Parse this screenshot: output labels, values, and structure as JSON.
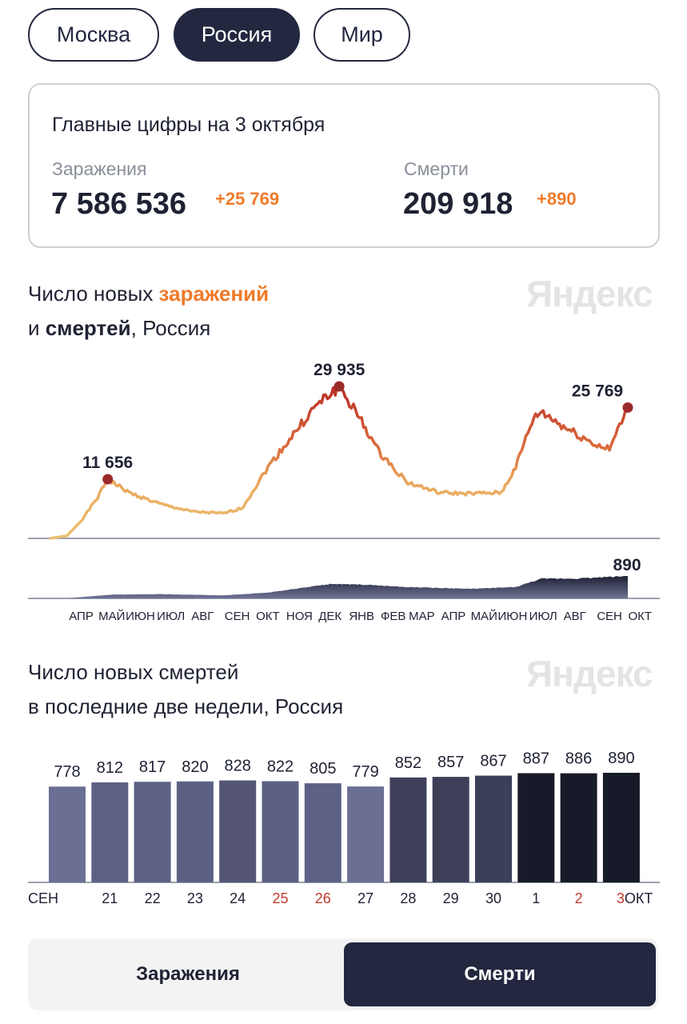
{
  "regions": [
    {
      "label": "Москва",
      "active": false
    },
    {
      "label": "Россия",
      "active": true
    },
    {
      "label": "Мир",
      "active": false
    }
  ],
  "summary": {
    "title": "Главные цифры на 3 октября",
    "infections": {
      "label": "Заражения",
      "value": "7 586 536",
      "delta": "+25 769"
    },
    "deaths": {
      "label": "Смерти",
      "value": "209 918",
      "delta": "+890"
    }
  },
  "watermark": "Яндекс",
  "colors": {
    "accent": "#f07a2a",
    "dark": "#232840",
    "weekend": "#c0392b"
  },
  "chart1": {
    "title_pre": "Число новых ",
    "title_hl1": "заражений",
    "title_mid": "и ",
    "title_hl2": "смертей",
    "title_post": ", Россия"
  },
  "chart_data": [
    {
      "type": "line",
      "series": [
        {
          "values": [
            [
              "2020-03-15",
              0
            ],
            [
              "2020-04-01",
              500
            ],
            [
              "2020-04-15",
              3500
            ],
            [
              "2020-05-01",
              8000
            ],
            [
              "2020-05-11",
              11656
            ],
            [
              "2020-06-01",
              9000
            ],
            [
              "2020-07-01",
              6800
            ],
            [
              "2020-08-01",
              5300
            ],
            [
              "2020-09-01",
              4900
            ],
            [
              "2020-09-20",
              6000
            ],
            [
              "2020-10-15",
              14000
            ],
            [
              "2020-11-15",
              22000
            ],
            [
              "2020-12-01",
              26000
            ],
            [
              "2020-12-24",
              29935
            ],
            [
              "2021-01-15",
              23000
            ],
            [
              "2021-02-01",
              17000
            ],
            [
              "2021-03-01",
              11000
            ],
            [
              "2021-04-01",
              9000
            ],
            [
              "2021-05-01",
              8800
            ],
            [
              "2021-06-01",
              9000
            ],
            [
              "2021-06-15",
              14000
            ],
            [
              "2021-07-01",
              23000
            ],
            [
              "2021-07-10",
              25000
            ],
            [
              "2021-08-01",
              22000
            ],
            [
              "2021-09-01",
              18500
            ],
            [
              "2021-09-15",
              17500
            ],
            [
              "2021-10-03",
              25769
            ]
          ]
        }
      ],
      "annotations": [
        {
          "date": "2020-05-11",
          "label": "11 656"
        },
        {
          "date": "2020-12-24",
          "label": "29 935"
        },
        {
          "date": "2021-10-03",
          "label": "25 769"
        }
      ],
      "ylim": [
        0,
        30000
      ]
    },
    {
      "type": "area",
      "series": [
        {
          "values": [
            [
              "2020-03-15",
              0
            ],
            [
              "2020-04-01",
              5
            ],
            [
              "2020-05-15",
              150
            ],
            [
              "2020-07-01",
              170
            ],
            [
              "2020-09-01",
              120
            ],
            [
              "2020-10-15",
              230
            ],
            [
              "2020-12-15",
              570
            ],
            [
              "2021-01-15",
              550
            ],
            [
              "2021-03-01",
              450
            ],
            [
              "2021-05-01",
              380
            ],
            [
              "2021-06-15",
              450
            ],
            [
              "2021-07-10",
              780
            ],
            [
              "2021-08-15",
              790
            ],
            [
              "2021-10-03",
              890
            ]
          ]
        }
      ],
      "annotation": "890",
      "ylim": [
        0,
        1000
      ],
      "x_ticks": [
        [
          "АПР",
          "2020-04-15"
        ],
        [
          "МАЙ",
          "2020-05-15"
        ],
        [
          "ИЮН",
          "2020-06-12"
        ],
        [
          "ИЮЛ",
          "2020-07-12"
        ],
        [
          "АВГ",
          "2020-08-12"
        ],
        [
          "СЕН",
          "2020-09-15"
        ],
        [
          "ОКТ",
          "2020-10-15"
        ],
        [
          "НОЯ",
          "2020-11-15"
        ],
        [
          "ДЕК",
          "2020-12-15"
        ],
        [
          "ЯНВ",
          "2021-01-15"
        ],
        [
          "ФЕВ",
          "2021-02-15"
        ],
        [
          "МАР",
          "2021-03-15"
        ],
        [
          "АПР",
          "2021-04-15"
        ],
        [
          "МАЙ",
          "2021-05-15"
        ],
        [
          "ИЮН",
          "2021-06-12"
        ],
        [
          "ИЮЛ",
          "2021-07-12"
        ],
        [
          "АВГ",
          "2021-08-12"
        ],
        [
          "СЕН",
          "2021-09-15"
        ],
        [
          "ОКТ",
          "2021-10-15"
        ]
      ]
    },
    {
      "type": "bar",
      "title_line1": "Число новых смертей",
      "title_line2": "в последние две недели, Россия",
      "categories": [
        "СЕН",
        "21",
        "22",
        "23",
        "24",
        "25",
        "26",
        "27",
        "28",
        "29",
        "30",
        "1",
        "2",
        "3"
      ],
      "category_suffix_last": "ОКТ",
      "weekend": [
        false,
        false,
        false,
        false,
        false,
        true,
        true,
        false,
        false,
        false,
        false,
        false,
        true,
        true
      ],
      "values": [
        778,
        812,
        817,
        820,
        828,
        822,
        805,
        779,
        852,
        857,
        867,
        887,
        886,
        890
      ],
      "bar_colors": [
        "#6b6f94",
        "#5d6185",
        "#5d6185",
        "#5c6184",
        "#535573",
        "#5c6184",
        "#5d6185",
        "#6b6f94",
        "#3e4159",
        "#3d4058",
        "#3b3f57",
        "#171a28",
        "#171a28",
        "#171a28"
      ],
      "ylim": [
        0,
        890
      ]
    }
  ],
  "toggle": {
    "infections": "Заражения",
    "deaths": "Смерти",
    "active": "deaths"
  }
}
